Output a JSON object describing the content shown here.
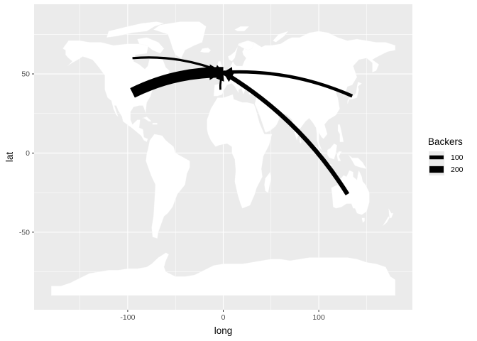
{
  "chart_data": {
    "type": "line",
    "xlabel": "long",
    "ylabel": "lat",
    "xlim": [
      -198,
      198
    ],
    "ylim": [
      -99,
      94
    ],
    "x_ticks": [
      -100,
      0,
      100
    ],
    "x_tick_labels": [
      "-100",
      "0",
      "100"
    ],
    "y_ticks": [
      -50,
      0,
      50
    ],
    "y_tick_labels": [
      "-50",
      "0",
      "50"
    ],
    "grid": true,
    "background": "world map (land in white)",
    "legend": {
      "title": "Backers",
      "placement": "right",
      "entries": [
        {
          "label": "100",
          "value": 100
        },
        {
          "label": "200",
          "value": 200
        }
      ]
    },
    "series": [
      {
        "from": [
          -95,
          60
        ],
        "to": [
          0,
          51
        ],
        "backers": 40
      },
      {
        "from": [
          -95,
          38
        ],
        "to": [
          0,
          51
        ],
        "backers": 350
      },
      {
        "from": [
          135,
          36
        ],
        "to": [
          0,
          51
        ],
        "backers": 80
      },
      {
        "from": [
          130,
          -26
        ],
        "to": [
          0,
          51
        ],
        "backers": 120
      },
      {
        "from": [
          -3,
          40
        ],
        "to": [
          0,
          51
        ],
        "backers": 30
      }
    ]
  },
  "colors": {
    "panel": "#ebebeb",
    "grid_major": "#ffffff",
    "land": "#ffffff",
    "flow": "#000000"
  }
}
